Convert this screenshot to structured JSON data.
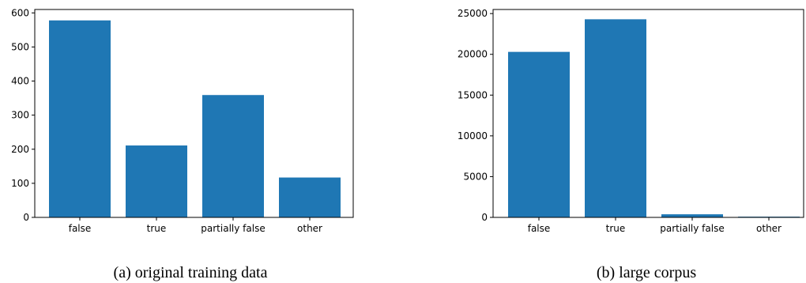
{
  "chart_data": [
    {
      "type": "bar",
      "categories": [
        "false",
        "true",
        "partially false",
        "other"
      ],
      "values": [
        578,
        211,
        359,
        117
      ],
      "ylim": [
        0,
        610
      ],
      "yticks": [
        0,
        100,
        200,
        300,
        400,
        500,
        600
      ],
      "ytick_labels": [
        "0",
        "100",
        "200",
        "300",
        "400",
        "500",
        "600"
      ],
      "grid": false,
      "bar_color": "#1f77b4",
      "caption": "(a) original training data"
    },
    {
      "type": "bar",
      "categories": [
        "false",
        "true",
        "partially false",
        "other"
      ],
      "values": [
        20300,
        24300,
        380,
        90
      ],
      "ylim": [
        0,
        25500
      ],
      "yticks": [
        0,
        5000,
        10000,
        15000,
        20000,
        25000
      ],
      "ytick_labels": [
        "0",
        "5000",
        "10000",
        "15000",
        "20000",
        "25000"
      ],
      "grid": false,
      "bar_color": "#1f77b4",
      "caption": "(b) large corpus"
    }
  ]
}
